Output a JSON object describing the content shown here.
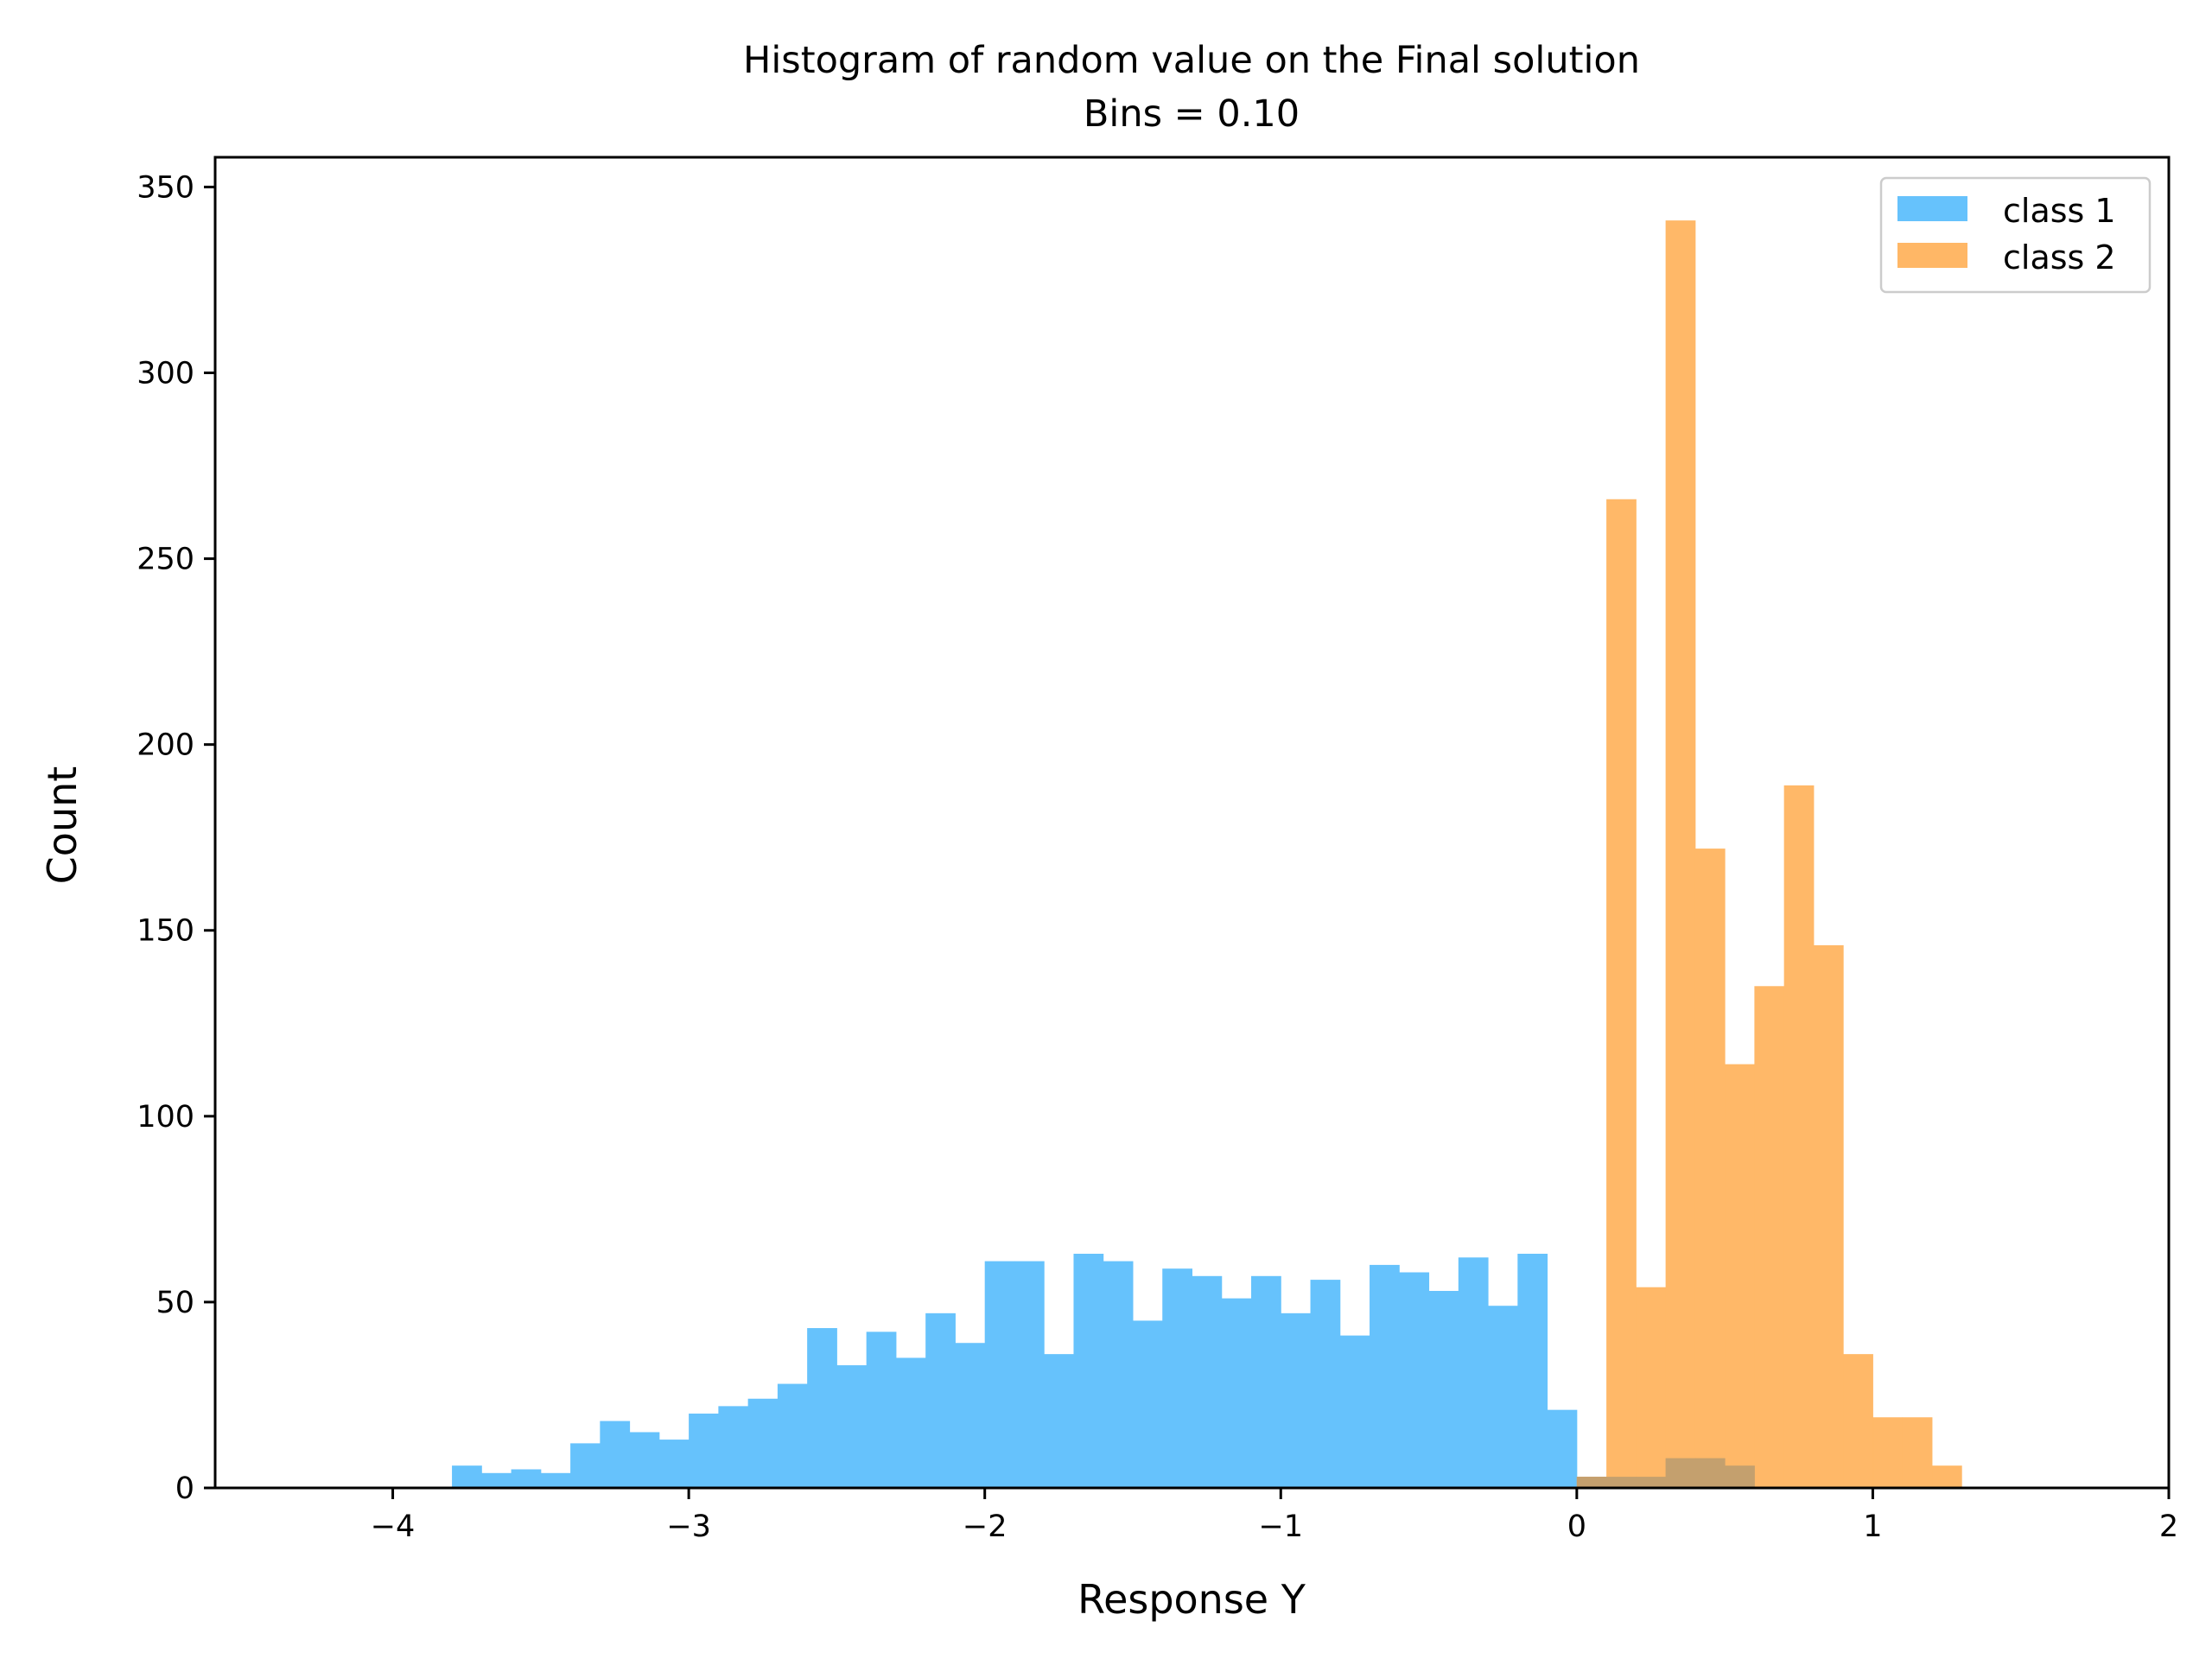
{
  "colors": {
    "class1": "#66c2fc",
    "class2": "#ffb766",
    "axis": "#000000",
    "background": "#ffffff"
  },
  "chart_data": {
    "type": "bar",
    "title": "Histogram of random value on the Final solution",
    "subtitle": "Bins = 0.10",
    "xlabel": "Response Y",
    "ylabel": "Count",
    "xlim": [
      -4.6,
      2.0
    ],
    "ylim": [
      0,
      358
    ],
    "xticks": [
      -4,
      -3,
      -2,
      -1,
      0,
      1,
      2
    ],
    "xtick_labels": [
      "−4",
      "−3",
      "−2",
      "−1",
      "0",
      "1",
      "2"
    ],
    "yticks": [
      0,
      50,
      100,
      150,
      200,
      250,
      300,
      350
    ],
    "ytick_labels": [
      "0",
      "50",
      "100",
      "150",
      "200",
      "250",
      "300",
      "350"
    ],
    "bin_width": 0.1,
    "legend": {
      "position": "top-right",
      "labels": [
        "class 1",
        "class 2"
      ]
    },
    "series": [
      {
        "name": "class 1",
        "color": "#66c2fc",
        "bin_starts": [
          -3.8,
          -3.7,
          -3.6,
          -3.5,
          -3.4,
          -3.3,
          -3.2,
          -3.1,
          -3.0,
          -2.9,
          -2.8,
          -2.7,
          -2.6,
          -2.5,
          -2.4,
          -2.3,
          -2.2,
          -2.1,
          -2.0,
          -1.9,
          -1.8,
          -1.7,
          -1.6,
          -1.5,
          -1.4,
          -1.3,
          -1.2,
          -1.1,
          -1.0,
          -0.9,
          -0.8,
          -0.7,
          -0.6,
          -0.5,
          -0.4,
          -0.3,
          -0.2,
          -0.1,
          0.0,
          0.1,
          0.2,
          0.3,
          0.4,
          0.5
        ],
        "counts": [
          6,
          4,
          5,
          4,
          12,
          18,
          15,
          13,
          20,
          22,
          24,
          28,
          43,
          33,
          42,
          35,
          47,
          39,
          61,
          61,
          36,
          63,
          61,
          45,
          59,
          57,
          51,
          57,
          47,
          56,
          41,
          60,
          58,
          53,
          62,
          49,
          63,
          21,
          3,
          3,
          3,
          8,
          8,
          6
        ]
      },
      {
        "name": "class 2",
        "color": "#ffb766",
        "bin_starts": [
          0.0,
          0.1,
          0.2,
          0.3,
          0.4,
          0.5,
          0.6,
          0.7,
          0.8,
          0.9,
          1.0,
          1.1,
          1.2
        ],
        "counts": [
          3,
          266,
          54,
          341,
          172,
          114,
          135,
          189,
          146,
          36,
          19,
          19,
          6
        ]
      }
    ]
  }
}
